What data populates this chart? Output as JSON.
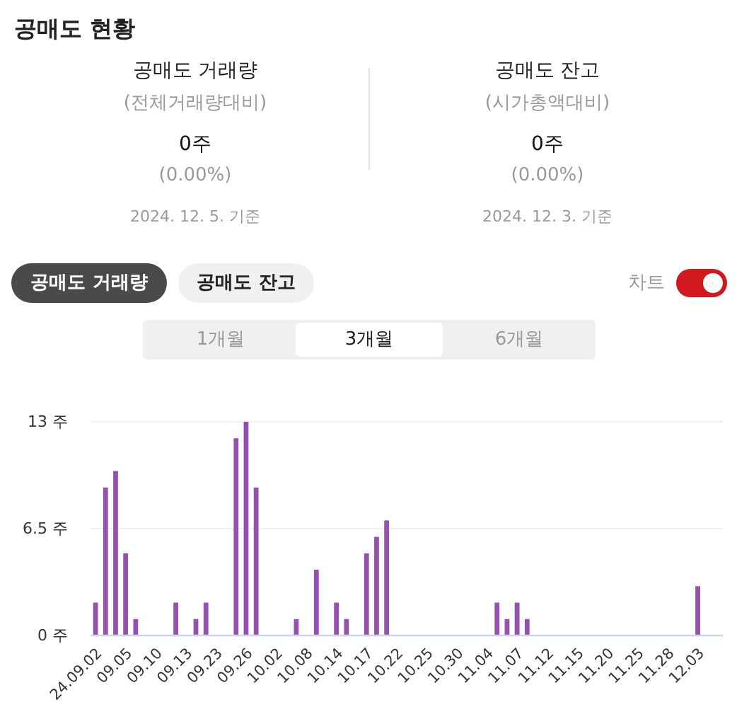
{
  "chart_data": {
    "type": "bar",
    "title": "공매도 현황",
    "annotations": [
      "공매도 거래량",
      "(전체거래량대비)",
      "0주",
      "(0.00%)",
      "2024. 12. 5. 기준",
      "공매도 잔고",
      "(시가총액대비)",
      "0주",
      "(0.00%)",
      "2024. 12. 3. 기준",
      "공매도 거래량",
      "공매도 잔고",
      "차트",
      "1개월",
      "3개월",
      "6개월"
    ],
    "categories": [
      "24.09.02",
      null,
      null,
      "09.05",
      null,
      null,
      "09.10",
      null,
      null,
      "09.13",
      null,
      null,
      "09.23",
      null,
      null,
      "09.26",
      null,
      null,
      "10.02",
      null,
      null,
      "10.08",
      null,
      null,
      "10.14",
      null,
      null,
      "10.17",
      null,
      null,
      "10.22",
      null,
      null,
      "10.25",
      null,
      null,
      "10.30",
      null,
      null,
      "11.04",
      null,
      null,
      "11.07",
      null,
      null,
      "11.12",
      null,
      null,
      "11.15",
      null,
      null,
      "11.20",
      null,
      null,
      "11.25",
      null,
      null,
      "11.28",
      null,
      null,
      "12.03",
      null,
      null
    ],
    "values": [
      2,
      9,
      10,
      5,
      1,
      0,
      0,
      0,
      2,
      0,
      1,
      2,
      0,
      0,
      12,
      13,
      9,
      0,
      0,
      0,
      1,
      0,
      4,
      0,
      2,
      1,
      0,
      5,
      6,
      7,
      0,
      0,
      0,
      0,
      0,
      0,
      0,
      0,
      0,
      0,
      2,
      1,
      2,
      1,
      0,
      0,
      0,
      0,
      0,
      0,
      0,
      0,
      0,
      0,
      0,
      0,
      0,
      0,
      0,
      0,
      3,
      0,
      0
    ],
    "color": "#9650ad",
    "ylim": [
      0,
      13
    ],
    "yticks": [
      {
        "value": 0,
        "label": "0 주"
      },
      {
        "value": 6.5,
        "label": "6.5 주"
      },
      {
        "value": 13,
        "label": "13 주"
      }
    ],
    "grid": "y"
  }
}
